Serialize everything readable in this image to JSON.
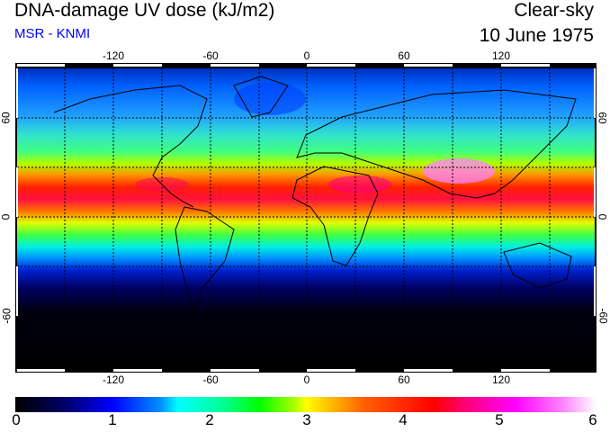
{
  "header": {
    "title": "DNA-damage UV dose (kJ/m2)",
    "source": "MSR - KNMI",
    "condition": "Clear-sky",
    "date": "10 June 1975"
  },
  "map": {
    "lon_ticks": [
      "-120",
      "-60",
      "0",
      "60",
      "120"
    ],
    "lat_ticks_left": [
      "60",
      "0",
      "-60"
    ],
    "lat_ticks_right": [
      "60",
      "0",
      "-60"
    ]
  },
  "colorbar": {
    "labels": [
      "0",
      "1",
      "2",
      "3",
      "4",
      "5",
      "6"
    ],
    "min": 0,
    "max": 6,
    "unit": "kJ/m2"
  }
}
